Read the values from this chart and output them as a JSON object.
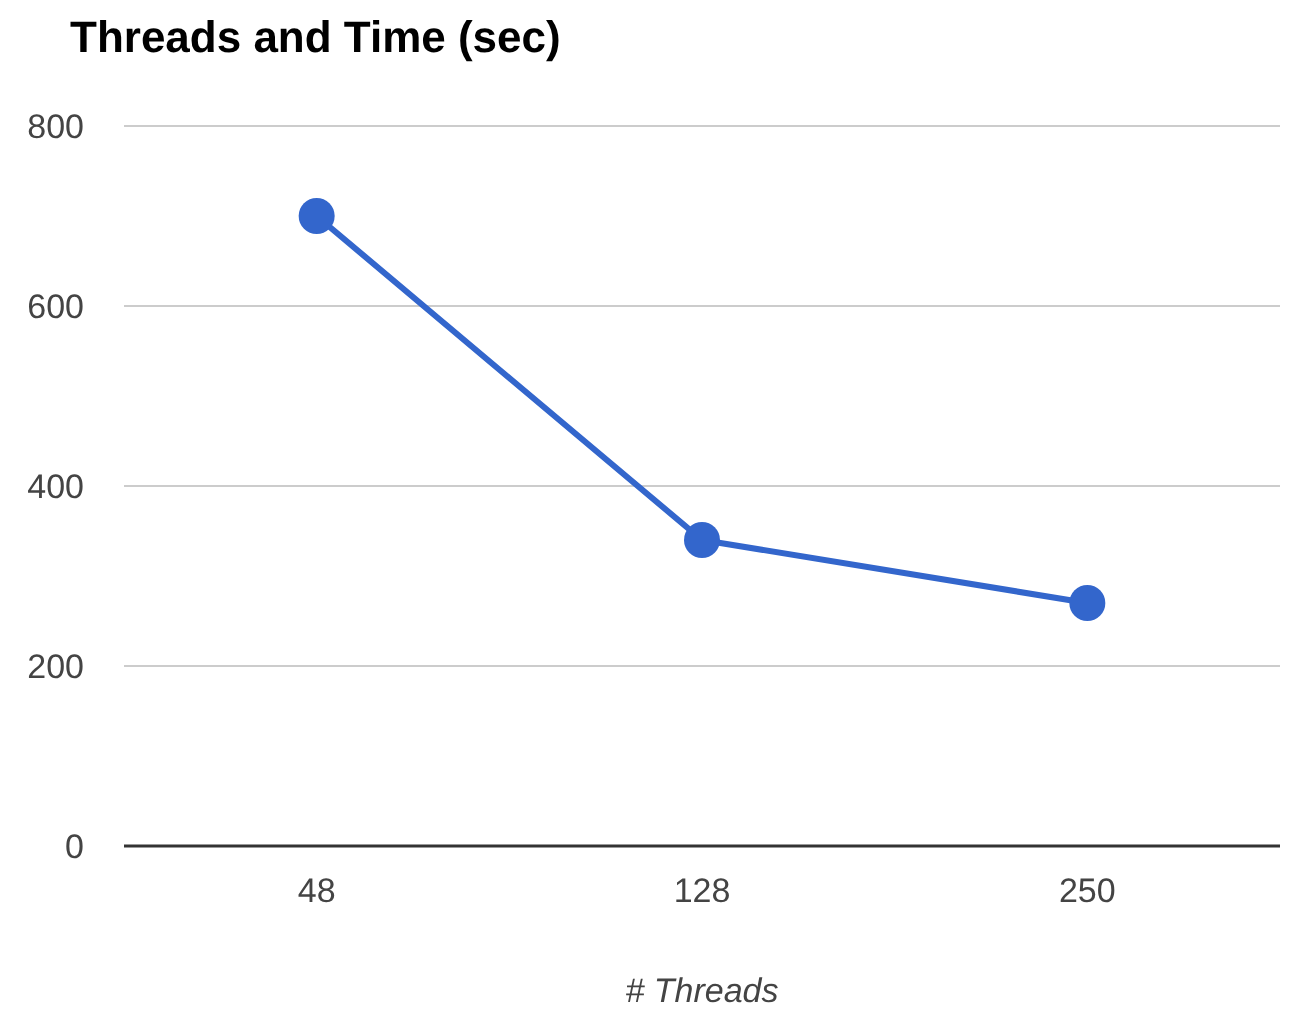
{
  "chart_data": {
    "type": "line",
    "title": "Threads and Time (sec)",
    "xlabel": "# Threads",
    "categories": [
      "48",
      "128",
      "250"
    ],
    "series": [
      {
        "color": "#3366cc",
        "values": [
          700,
          340,
          270
        ]
      }
    ],
    "ylim": [
      0,
      800
    ],
    "yticks": [
      0,
      200,
      400,
      600,
      800
    ],
    "grid": "y",
    "marker": "circle",
    "line_style": "solid",
    "legend": false
  }
}
